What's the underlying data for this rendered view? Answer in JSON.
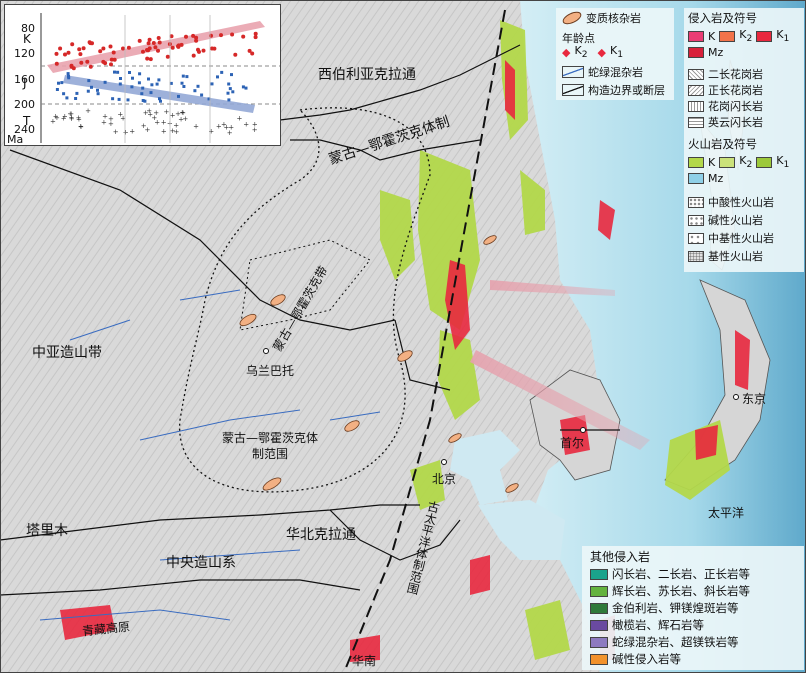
{
  "map": {
    "regions": {
      "siberia_craton": "西伯利亚克拉通",
      "mongol_okhotsk_system": "蒙古—鄂霍茨克体制",
      "mongol_okhotsk_belt": "蒙古—鄂霍茨克带",
      "ulaanbaatar": "乌兰巴托",
      "mongol_okhotsk_scope": "蒙古—鄂霍茨克体制范围",
      "central_asian_orogen": "中亚造山带",
      "tarim": "塔里木",
      "north_china_craton": "华北克拉通",
      "central_orogenic_system": "中央造山系",
      "paleo_pacific_scope": "古太平洋体制范围",
      "beijing": "北京",
      "seoul": "首尔",
      "tokyo": "东京",
      "pacific": "太平洋",
      "qinghai_tibet": "青藏高原",
      "south_china": "华南"
    },
    "colors": {
      "land_gray": "#d8d8d8",
      "sea_light": "#d4eef5",
      "sea_mid": "#a6d9ea",
      "sea_deep": "#6fb7d4",
      "volcanic_green": "#b3d84a",
      "intrusive_red": "#e8283e",
      "intrusive_pink": "#ea3d74",
      "core_complex": "#f2b083"
    }
  },
  "legend_top": {
    "core_complex": "变质核杂岩",
    "age_points": "年龄点",
    "k2": "K",
    "k2_sub": "2",
    "k1": "K",
    "k1_sub": "1",
    "ophiolite": "蛇绿混杂岩",
    "boundary": "构造边界或断层"
  },
  "legend_intrusive": {
    "title": "侵入岩及符号",
    "k": "K",
    "k2": "K",
    "k2_sub": "2",
    "k1": "K",
    "k1_sub": "1",
    "mz": "Mz",
    "items": [
      "二长花岗岩",
      "正长花岗岩",
      "花岗闪长岩",
      "英云闪长岩"
    ]
  },
  "legend_volcanic": {
    "title": "火山岩及符号",
    "k": "K",
    "k2": "K",
    "k2_sub": "2",
    "k1": "K",
    "k1_sub": "1",
    "mz": "Mz",
    "items": [
      "中酸性火山岩",
      "碱性火山岩",
      "中基性火山岩",
      "基性火山岩"
    ]
  },
  "legend_other": {
    "title": "其他侵入岩",
    "items": [
      {
        "label": "闪长岩、二长岩、正长岩等",
        "color": "#1aa38c"
      },
      {
        "label": "辉长岩、苏长岩、斜长岩等",
        "color": "#63b33e"
      },
      {
        "label": "金伯利岩、钾镁煌斑岩等",
        "color": "#2f7a3a"
      },
      {
        "label": "橄榄岩、辉石岩等",
        "color": "#6a4aa0"
      },
      {
        "label": "蛇绿混杂岩、超镁铁岩等",
        "color": "#8d7ac0"
      },
      {
        "label": "碱性侵入岩等",
        "color": "#f2922c"
      }
    ]
  },
  "inset": {
    "y_axis_unit": "Ma",
    "ticks": [
      "80",
      "120",
      "160",
      "200",
      "240"
    ],
    "periods": [
      "K",
      "J",
      "T"
    ]
  }
}
